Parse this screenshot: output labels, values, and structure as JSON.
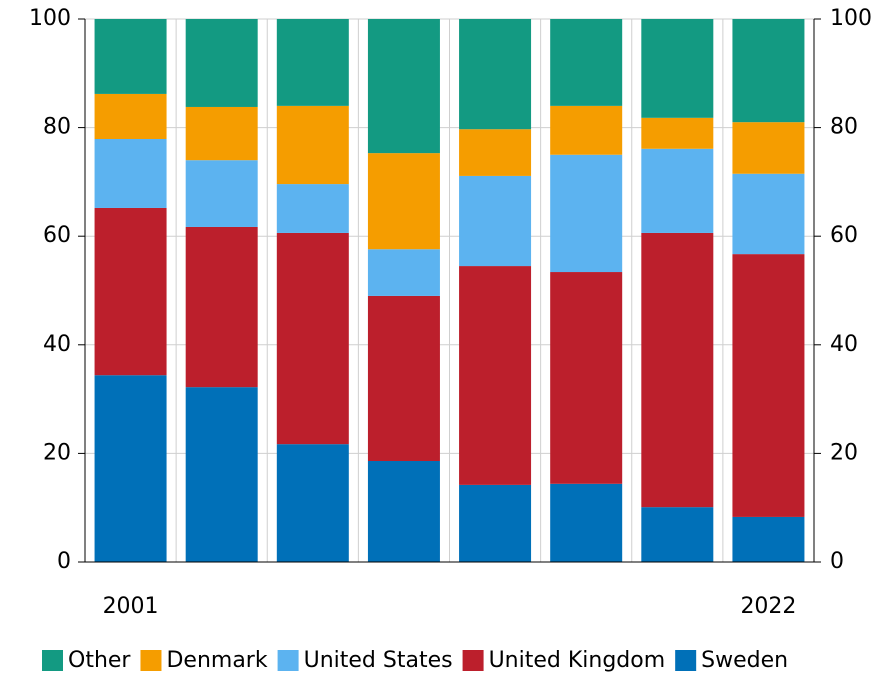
{
  "chart_data": {
    "type": "stacked_bar",
    "categories": [
      "2001",
      null,
      null,
      null,
      null,
      null,
      null,
      "2022"
    ],
    "series": [
      {
        "name": "Sweden",
        "color": "#0070b8",
        "values": [
          34.4,
          32.2,
          21.7,
          18.6,
          14.2,
          14.4,
          10.1,
          8.3
        ]
      },
      {
        "name": "United Kingdom",
        "color": "#bc1f2c",
        "values": [
          30.8,
          29.5,
          38.9,
          30.4,
          40.3,
          39.0,
          50.5,
          48.4
        ]
      },
      {
        "name": "United States",
        "color": "#5cb3f0",
        "values": [
          12.7,
          12.3,
          9.0,
          8.6,
          16.6,
          21.6,
          15.5,
          14.8
        ]
      },
      {
        "name": "Denmark",
        "color": "#f59d00",
        "values": [
          8.3,
          9.8,
          14.4,
          17.7,
          8.6,
          9.0,
          5.7,
          9.5
        ]
      },
      {
        "name": "Other",
        "color": "#139a82",
        "values": [
          13.8,
          16.2,
          16.0,
          24.7,
          20.3,
          16.0,
          18.2,
          19.0
        ]
      }
    ],
    "ylim": [
      0,
      100
    ],
    "yticks": [
      0,
      20,
      40,
      60,
      80,
      100
    ],
    "y2lim": [
      0,
      100
    ],
    "y2ticks": [
      0,
      20,
      40,
      60,
      80,
      100
    ],
    "grid": true,
    "legend": "bottom"
  }
}
